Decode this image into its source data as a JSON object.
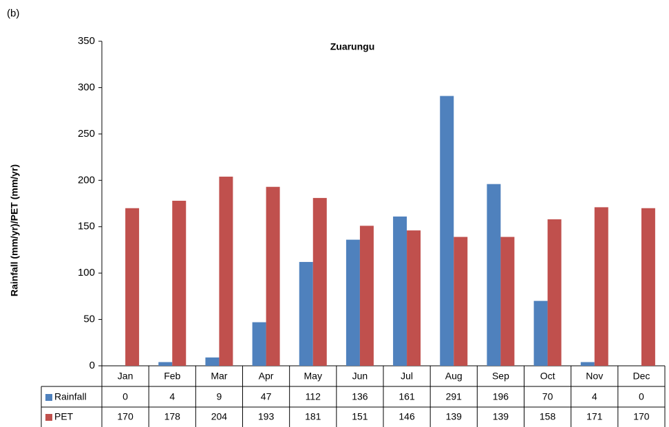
{
  "chart_data": {
    "type": "bar",
    "panel_label": "(b)",
    "title": "Zuarungu",
    "y_label": "Rainfall (mm/yr)/PET (mm/yr)",
    "categories": [
      "Jan",
      "Feb",
      "Mar",
      "Apr",
      "May",
      "Jun",
      "Jul",
      "Aug",
      "Sep",
      "Oct",
      "Nov",
      "Dec"
    ],
    "series": [
      {
        "name": "Rainfall",
        "color": "#4f81bd",
        "values": [
          0,
          4,
          9,
          47,
          112,
          136,
          161,
          291,
          196,
          70,
          4,
          0
        ]
      },
      {
        "name": "PET",
        "color": "#c0504d",
        "values": [
          170,
          178,
          204,
          193,
          181,
          151,
          146,
          139,
          139,
          158,
          171,
          170
        ]
      }
    ],
    "ylim": [
      0,
      350
    ],
    "yticks": [
      0,
      50,
      100,
      150,
      200,
      250,
      300,
      350
    ],
    "grid": false
  }
}
